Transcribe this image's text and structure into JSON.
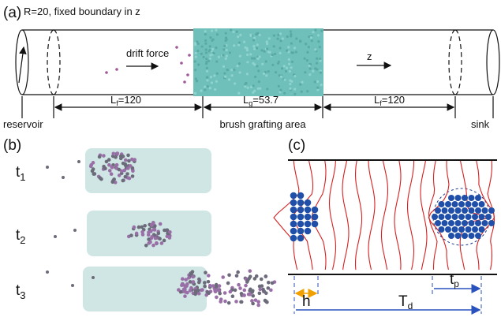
{
  "panel_a": {
    "label": "(a)",
    "title": "R=20, fixed boundary in z",
    "drift_label": "drift force",
    "axis_label": "z",
    "dimensions": [
      {
        "symbol": "L",
        "subscript": "f",
        "value": "=120"
      },
      {
        "symbol": "L",
        "subscript": "g",
        "value": "=53.7"
      },
      {
        "symbol": "L",
        "subscript": "f",
        "value": "=120"
      }
    ],
    "regions": [
      "reservoir",
      "brush grafting area",
      "sink"
    ]
  },
  "panel_b": {
    "label": "(b)",
    "times": [
      {
        "symbol": "t",
        "subscript": "1"
      },
      {
        "symbol": "t",
        "subscript": "2"
      },
      {
        "symbol": "t",
        "subscript": "3"
      }
    ]
  },
  "panel_c": {
    "label": "(c)",
    "h": "h",
    "Td": {
      "symbol": "T",
      "subscript": "d"
    },
    "tp": {
      "symbol": "t",
      "subscript": "p"
    }
  }
}
